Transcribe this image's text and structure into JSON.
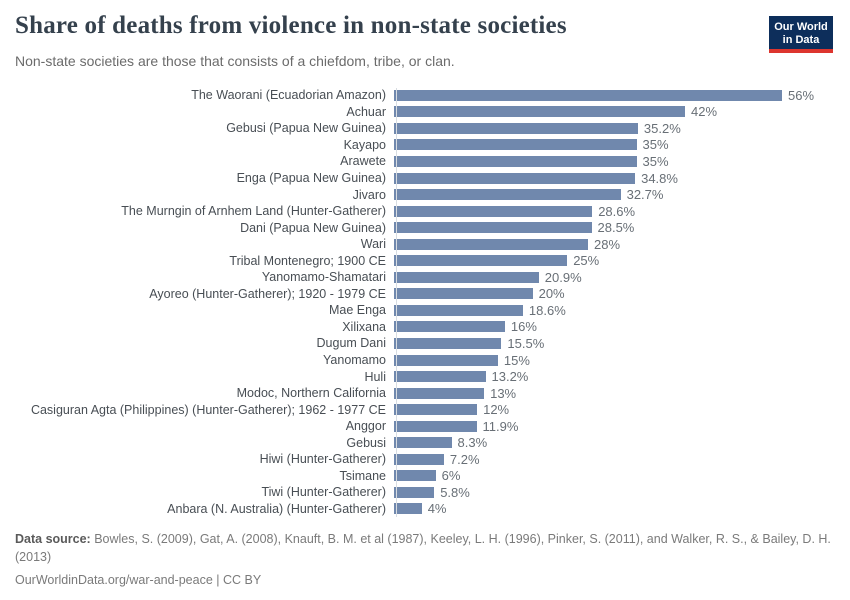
{
  "header": {
    "title": "Share of deaths from violence in non-state societies",
    "subtitle": "Non-state societies are those that consists of a chiefdom, tribe, or clan.",
    "logo": {
      "line1": "Our World",
      "line2": "in Data"
    }
  },
  "chart_data": {
    "type": "bar",
    "orientation": "horizontal",
    "title": "Share of deaths from violence in non-state societies",
    "subtitle": "Non-state societies are those that consists of a chiefdom, tribe, or clan.",
    "xlabel": "",
    "ylabel": "",
    "xlim": [
      0,
      56
    ],
    "grid": false,
    "legend": false,
    "bar_color": "#7088ad",
    "categories": [
      "The Waorani (Ecuadorian Amazon)",
      "Achuar",
      "Gebusi (Papua New Guinea)",
      "Kayapo",
      "Arawete",
      "Enga (Papua New Guinea)",
      "Jivaro",
      "The Murngin of Arnhem Land (Hunter-Gatherer)",
      "Dani (Papua New Guinea)",
      "Wari",
      "Tribal Montenegro; 1900 CE",
      "Yanomamo-Shamatari",
      "Ayoreo (Hunter-Gatherer); 1920 - 1979 CE",
      "Mae Enga",
      "Xilixana",
      "Dugum Dani",
      "Yanomamo",
      "Huli",
      "Modoc, Northern California",
      "Casiguran Agta (Philippines) (Hunter-Gatherer); 1962 - 1977 CE",
      "Anggor",
      "Gebusi",
      "Hiwi (Hunter-Gatherer)",
      "Tsimane",
      "Tiwi (Hunter-Gatherer)",
      "Anbara (N. Australia) (Hunter-Gatherer)"
    ],
    "values": [
      56,
      42,
      35.2,
      35,
      35,
      34.8,
      32.7,
      28.6,
      28.5,
      28,
      25,
      20.9,
      20,
      18.6,
      16,
      15.5,
      15,
      13.2,
      13,
      12,
      11.9,
      8.3,
      7.2,
      6,
      5.8,
      4
    ],
    "value_labels": [
      "56%",
      "42%",
      "35.2%",
      "35%",
      "35%",
      "34.8%",
      "32.7%",
      "28.6%",
      "28.5%",
      "28%",
      "25%",
      "20.9%",
      "20%",
      "18.6%",
      "16%",
      "15.5%",
      "15%",
      "13.2%",
      "13%",
      "12%",
      "11.9%",
      "8.3%",
      "7.2%",
      "6%",
      "5.8%",
      "4%"
    ]
  },
  "footer": {
    "source_label": "Data source:",
    "source_text": "Bowles, S. (2009), Gat, A. (2008), Knauft, B. M. et al (1987), Keeley, L. H. (1996), Pinker, S. (2011), and Walker, R. S., & Bailey, D. H. (2013)",
    "link_text": "OurWorldinData.org/war-and-peace | CC BY"
  },
  "colors": {
    "bar": "#7088ad",
    "title": "#35414d",
    "subtitle": "#6b6b6b",
    "category_label": "#484e54",
    "value_label": "#686f76",
    "axis_line": "#d8dde2",
    "logo_bg": "#0d2e5b",
    "logo_accent": "#dd352e"
  }
}
